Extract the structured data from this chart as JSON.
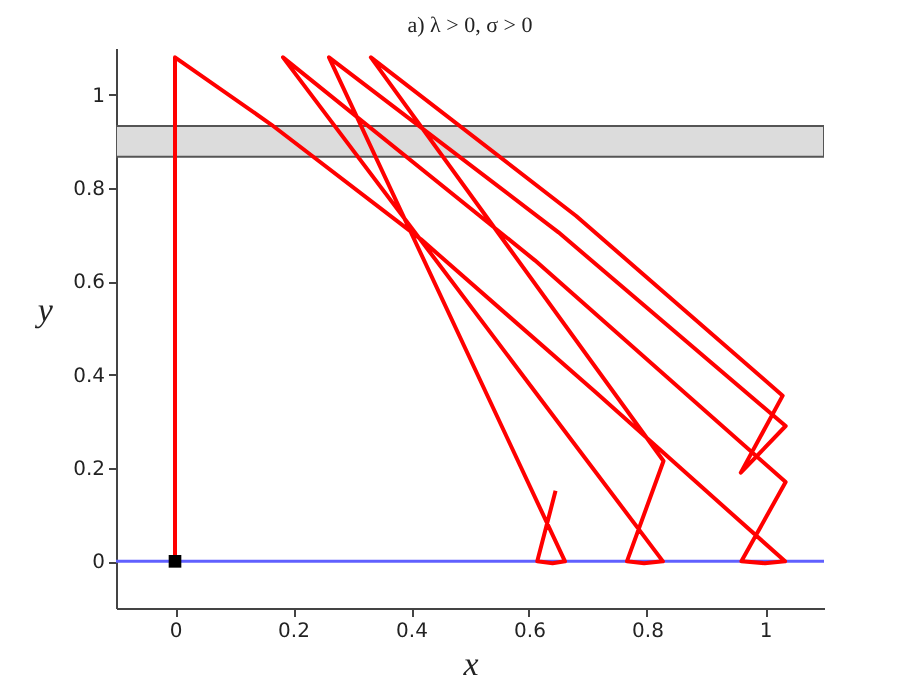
{
  "chart_data": {
    "type": "line",
    "title": "a) λ > 0, σ > 0",
    "xlabel": "x",
    "ylabel": "y",
    "xlim": [
      -0.1,
      1.1
    ],
    "ylim": [
      -0.1,
      1.1
    ],
    "xticks": [
      0,
      0.2,
      0.4,
      0.6,
      0.8,
      1
    ],
    "yticks": [
      0,
      0.2,
      0.4,
      0.6,
      0.8,
      1
    ],
    "grid": false,
    "bands": [
      {
        "axis": "y",
        "from": 0.867,
        "to": 0.933,
        "color": "#dcdcdc"
      }
    ],
    "ref_lines": [
      {
        "axis": "y",
        "value": 0,
        "color": "#6060ff"
      }
    ],
    "series": [
      {
        "color": "#ff0000",
        "marker": "none",
        "x": [
          0,
          0,
          0.163,
          0.417,
          0.715,
          1.034,
          1.0,
          0.96,
          1.035,
          0.61,
          0.183,
          0.827,
          0.795,
          0.766,
          0.828,
          0.332,
          0.68,
          1.03,
          0.959,
          1.035,
          0.65,
          0.261,
          0.661,
          0.64,
          0.614,
          0.645
        ],
        "values": [
          0,
          1.08,
          0.936,
          0.69,
          0.36,
          0,
          -0.004,
          0,
          0.17,
          0.645,
          1.08,
          0,
          -0.004,
          0,
          0.215,
          1.08,
          0.74,
          0.355,
          0.19,
          0.29,
          0.705,
          1.08,
          0,
          -0.004,
          0,
          0.151
        ]
      },
      {
        "type": "scatter",
        "color": "#000000",
        "marker": "square",
        "x": [
          0
        ],
        "values": [
          0
        ]
      }
    ]
  }
}
